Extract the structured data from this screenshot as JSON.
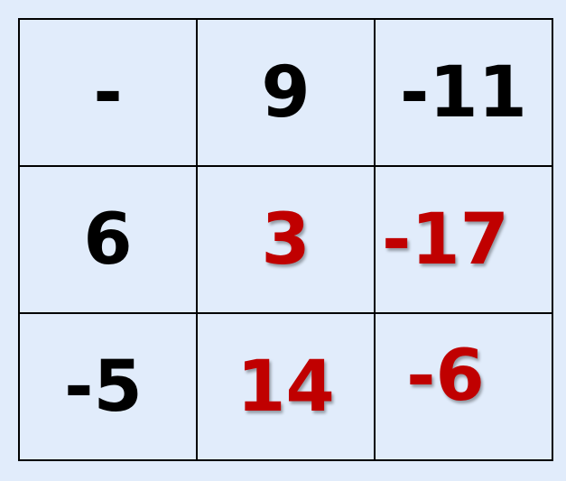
{
  "grid": {
    "rows": [
      [
        {
          "value": "-",
          "color": "black"
        },
        {
          "value": "9",
          "color": "black"
        },
        {
          "value": "-11",
          "color": "black"
        }
      ],
      [
        {
          "value": "6",
          "color": "black"
        },
        {
          "value": "3",
          "color": "red"
        },
        {
          "value": "-17",
          "color": "red"
        }
      ],
      [
        {
          "value": "-5",
          "color": "black"
        },
        {
          "value": "14",
          "color": "red"
        },
        {
          "value": "-6",
          "color": "red"
        }
      ]
    ],
    "colors": {
      "black": "#000000",
      "red": "#c00000",
      "background": "#e1ecfb"
    }
  }
}
